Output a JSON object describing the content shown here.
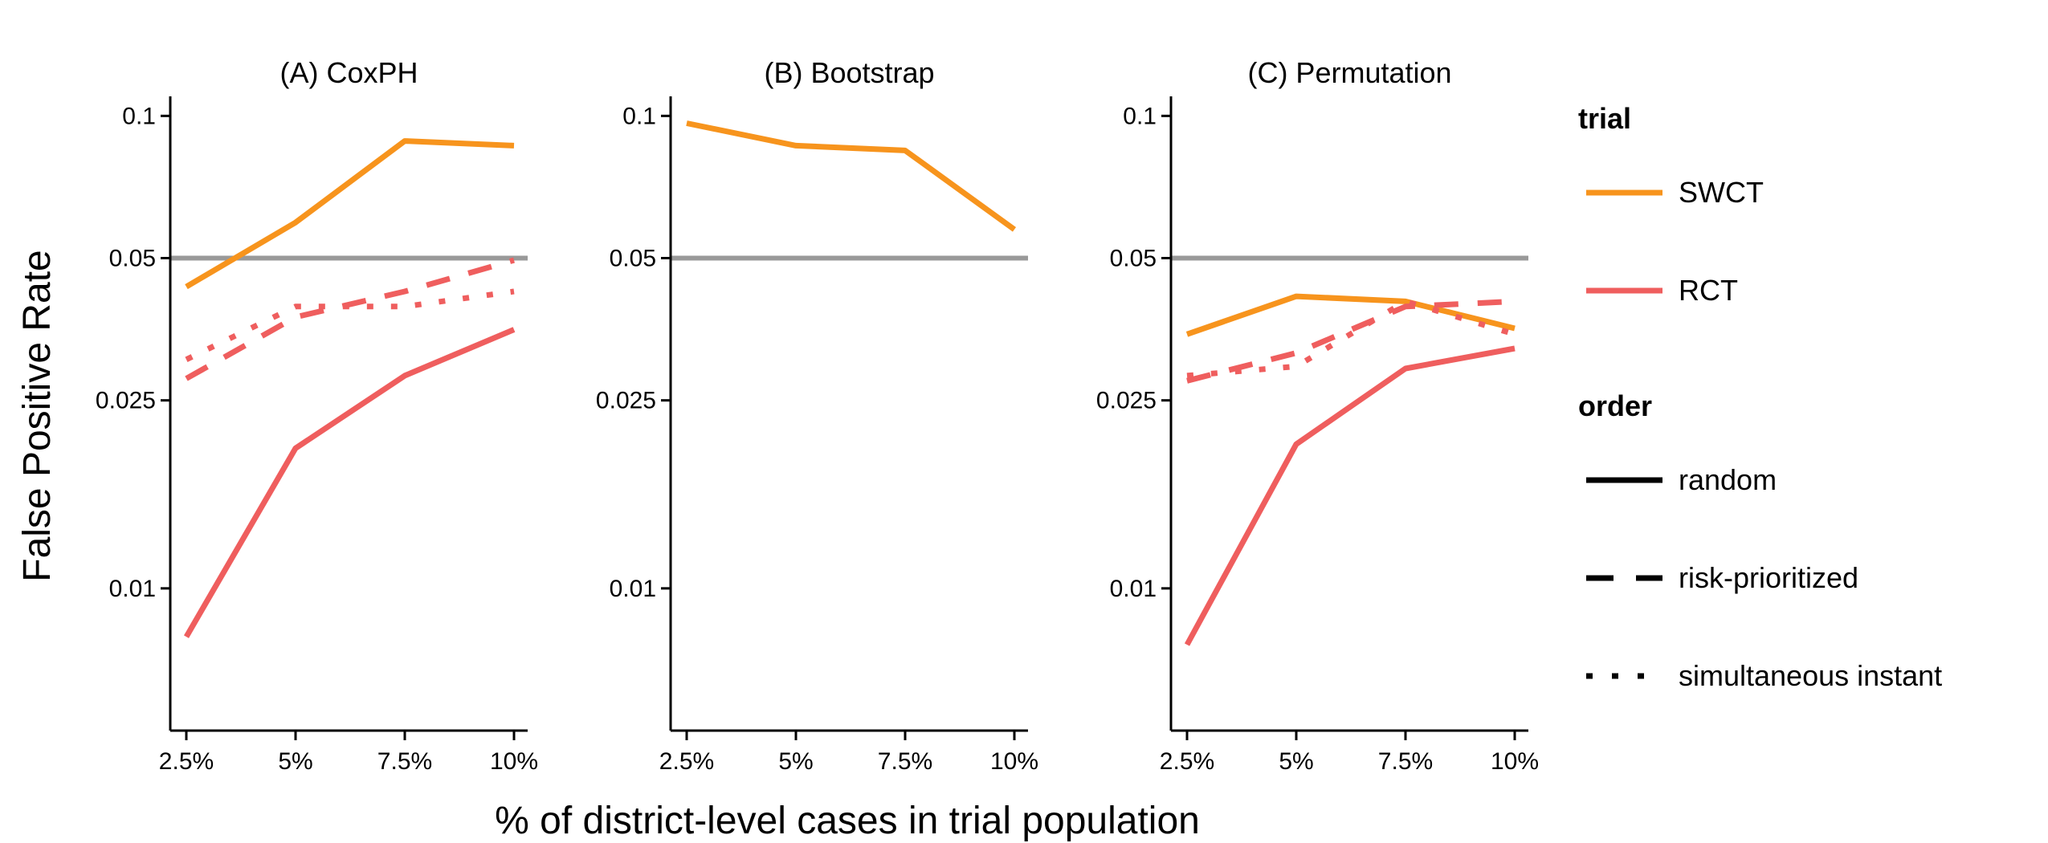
{
  "figure": {
    "xlabel": "% of district-level cases in trial population",
    "ylabel": "False Positive Rate"
  },
  "colors": {
    "SWCT": "#F7941D",
    "RCT": "#EF5E5E",
    "reference": "#999999",
    "axis": "#000000"
  },
  "legend": {
    "trial_title": "trial",
    "trial": [
      {
        "label": "SWCT",
        "color": "#F7941D"
      },
      {
        "label": "RCT",
        "color": "#EF5E5E"
      }
    ],
    "order_title": "order",
    "order": [
      {
        "label": "random",
        "style": "solid"
      },
      {
        "label": "risk-prioritized",
        "style": "dashed"
      },
      {
        "label": "simultaneous instant",
        "style": "dotted"
      }
    ]
  },
  "chart_data": [
    {
      "type": "line",
      "title": "(A) CoxPH",
      "categories": [
        "2.5%",
        "5%",
        "7.5%",
        "10%"
      ],
      "yscale": "log",
      "ylim": [
        0.005,
        0.11
      ],
      "yticks": [
        0.01,
        0.025,
        0.05,
        0.1
      ],
      "ytick_labels": [
        "0.01",
        "0.025",
        "0.05",
        "0.1"
      ],
      "reference_line": 0.05,
      "series": [
        {
          "trial": "SWCT",
          "order": "random",
          "values": [
            0.0435,
            0.0595,
            0.0885,
            0.0865
          ]
        },
        {
          "trial": "RCT",
          "order": "random",
          "values": [
            0.0079,
            0.0198,
            0.0282,
            0.0353
          ]
        },
        {
          "trial": "RCT",
          "order": "risk-prioritized",
          "values": [
            0.0278,
            0.0375,
            0.0425,
            0.0495
          ]
        },
        {
          "trial": "RCT",
          "order": "simultaneous instant",
          "values": [
            0.0305,
            0.0395,
            0.0395,
            0.0425
          ]
        }
      ]
    },
    {
      "type": "line",
      "title": "(B) Bootstrap",
      "categories": [
        "2.5%",
        "5%",
        "7.5%",
        "10%"
      ],
      "yscale": "log",
      "ylim": [
        0.005,
        0.11
      ],
      "yticks": [
        0.01,
        0.025,
        0.05,
        0.1
      ],
      "ytick_labels": [
        "0.01",
        "0.025",
        "0.05",
        "0.1"
      ],
      "reference_line": 0.05,
      "series": [
        {
          "trial": "SWCT",
          "order": "random",
          "values": [
            0.0965,
            0.0865,
            0.0845,
            0.0575
          ]
        }
      ]
    },
    {
      "type": "line",
      "title": "(C) Permutation",
      "categories": [
        "2.5%",
        "5%",
        "7.5%",
        "10%"
      ],
      "yscale": "log",
      "ylim": [
        0.005,
        0.11
      ],
      "yticks": [
        0.01,
        0.025,
        0.05,
        0.1
      ],
      "ytick_labels": [
        "0.01",
        "0.025",
        "0.05",
        "0.1"
      ],
      "reference_line": 0.05,
      "series": [
        {
          "trial": "SWCT",
          "order": "random",
          "values": [
            0.0345,
            0.0415,
            0.0405,
            0.0355
          ]
        },
        {
          "trial": "RCT",
          "order": "random",
          "values": [
            0.0076,
            0.0202,
            0.0292,
            0.0322
          ]
        },
        {
          "trial": "RCT",
          "order": "risk-prioritized",
          "values": [
            0.0275,
            0.0315,
            0.0395,
            0.0405
          ]
        },
        {
          "trial": "RCT",
          "order": "simultaneous instant",
          "values": [
            0.0282,
            0.0295,
            0.0405,
            0.0345
          ]
        }
      ]
    }
  ]
}
